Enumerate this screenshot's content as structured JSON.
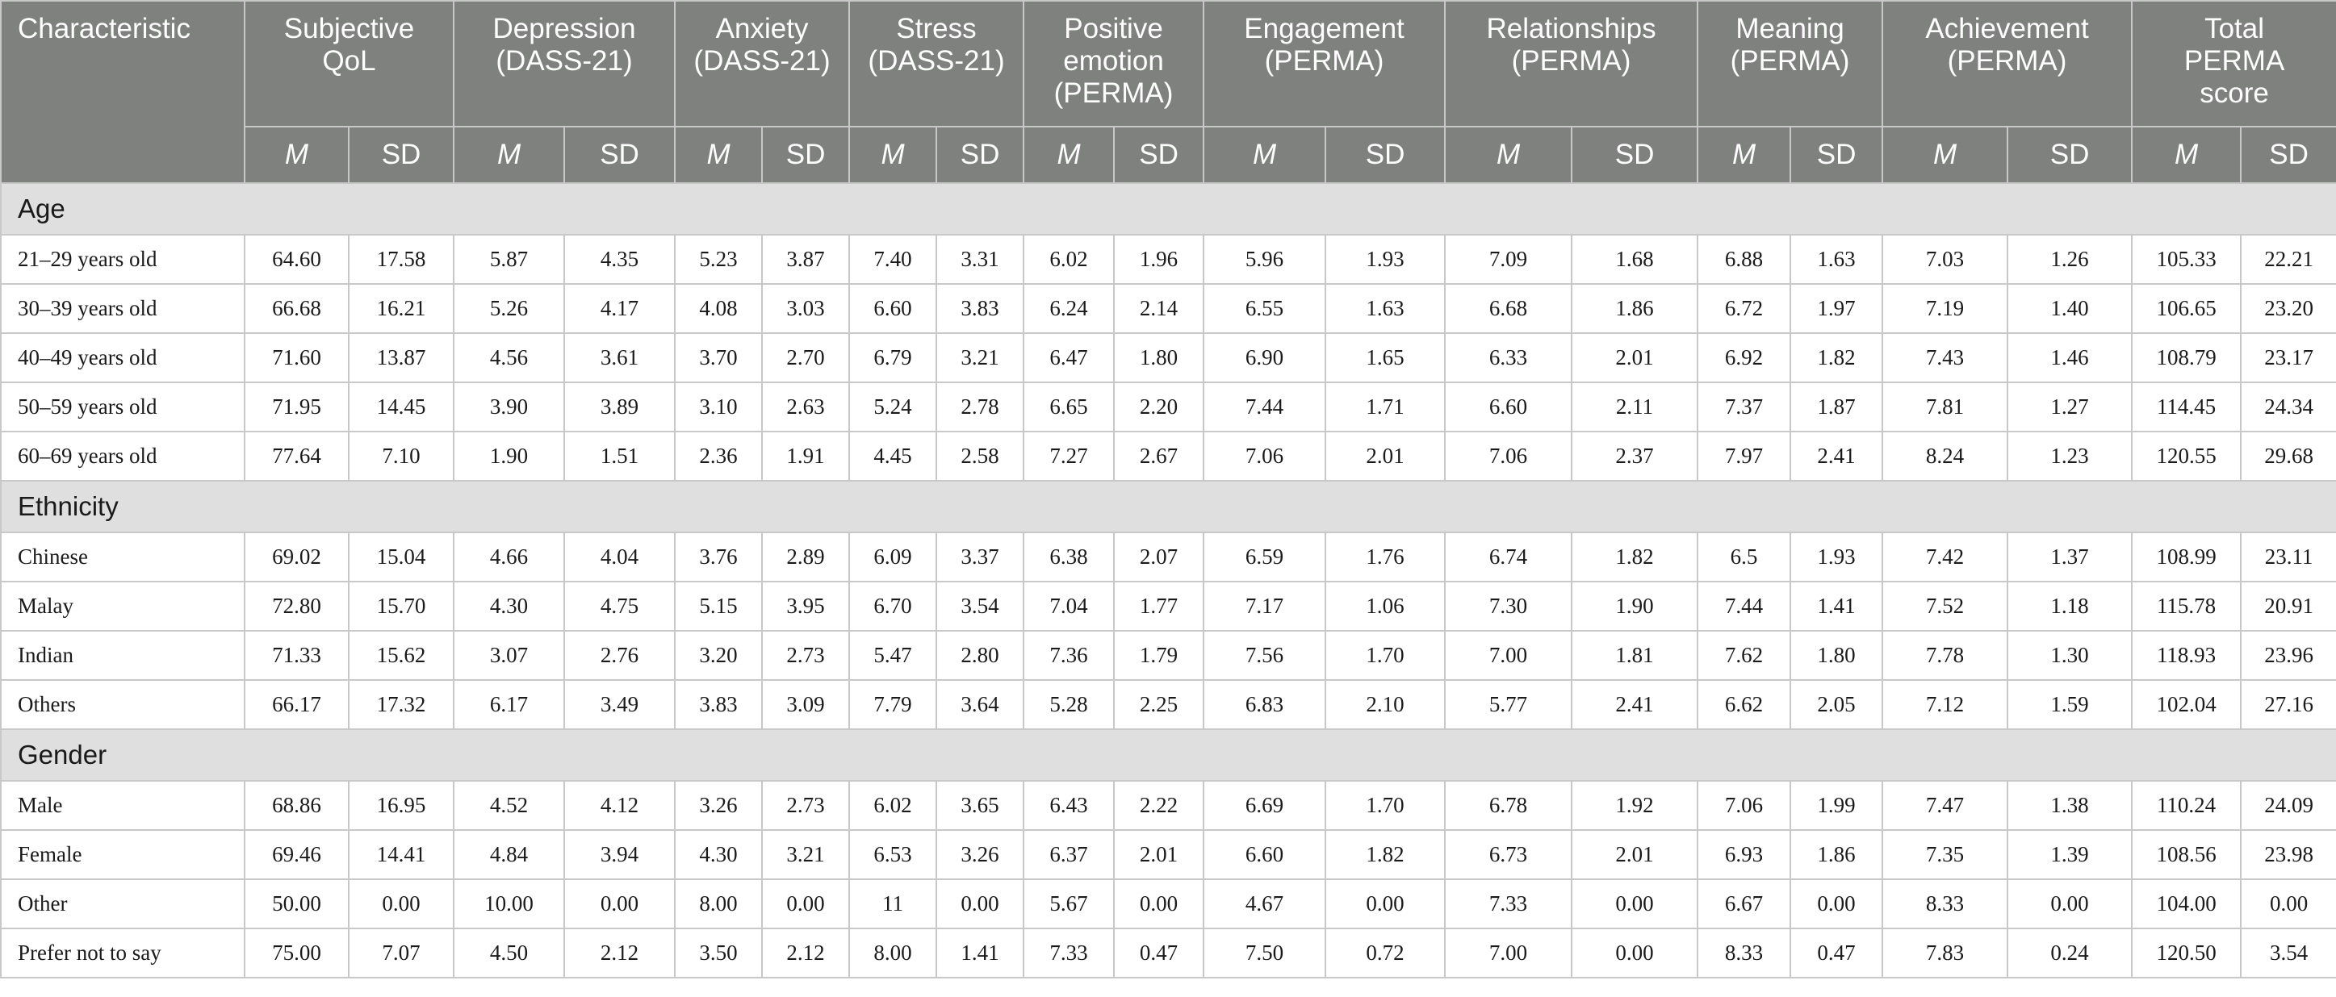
{
  "header": {
    "characteristic": "Characteristic",
    "groups": [
      {
        "line1": "Subjective",
        "line2": "QoL",
        "line3": ""
      },
      {
        "line1": "Depression",
        "line2": "(DASS-21)",
        "line3": ""
      },
      {
        "line1": "Anxiety",
        "line2": "(DASS-21)",
        "line3": ""
      },
      {
        "line1": "Stress",
        "line2": "(DASS-21)",
        "line3": ""
      },
      {
        "line1": "Positive",
        "line2": "emotion",
        "line3": "(PERMA)"
      },
      {
        "line1": "Engagement",
        "line2": "(PERMA)",
        "line3": ""
      },
      {
        "line1": "Relationships",
        "line2": "(PERMA)",
        "line3": ""
      },
      {
        "line1": "Meaning",
        "line2": "(PERMA)",
        "line3": ""
      },
      {
        "line1": "Achievement",
        "line2": "(PERMA)",
        "line3": ""
      },
      {
        "line1": "Total",
        "line2": "PERMA",
        "line3": "score"
      }
    ],
    "m_label": "M",
    "sd_label": "SD"
  },
  "sections": [
    {
      "title": "Age",
      "rows": [
        {
          "label": "21–29 years old",
          "values": [
            "64.60",
            "17.58",
            "5.87",
            "4.35",
            "5.23",
            "3.87",
            "7.40",
            "3.31",
            "6.02",
            "1.96",
            "5.96",
            "1.93",
            "7.09",
            "1.68",
            "6.88",
            "1.63",
            "7.03",
            "1.26",
            "105.33",
            "22.21"
          ]
        },
        {
          "label": "30–39 years old",
          "values": [
            "66.68",
            "16.21",
            "5.26",
            "4.17",
            "4.08",
            "3.03",
            "6.60",
            "3.83",
            "6.24",
            "2.14",
            "6.55",
            "1.63",
            "6.68",
            "1.86",
            "6.72",
            "1.97",
            "7.19",
            "1.40",
            "106.65",
            "23.20"
          ]
        },
        {
          "label": "40–49 years old",
          "values": [
            "71.60",
            "13.87",
            "4.56",
            "3.61",
            "3.70",
            "2.70",
            "6.79",
            "3.21",
            "6.47",
            "1.80",
            "6.90",
            "1.65",
            "6.33",
            "2.01",
            "6.92",
            "1.82",
            "7.43",
            "1.46",
            "108.79",
            "23.17"
          ]
        },
        {
          "label": "50–59 years old",
          "values": [
            "71.95",
            "14.45",
            "3.90",
            "3.89",
            "3.10",
            "2.63",
            "5.24",
            "2.78",
            "6.65",
            "2.20",
            "7.44",
            "1.71",
            "6.60",
            "2.11",
            "7.37",
            "1.87",
            "7.81",
            "1.27",
            "114.45",
            "24.34"
          ]
        },
        {
          "label": "60–69 years old",
          "values": [
            "77.64",
            "7.10",
            "1.90",
            "1.51",
            "2.36",
            "1.91",
            "4.45",
            "2.58",
            "7.27",
            "2.67",
            "7.06",
            "2.01",
            "7.06",
            "2.37",
            "7.97",
            "2.41",
            "8.24",
            "1.23",
            "120.55",
            "29.68"
          ]
        }
      ]
    },
    {
      "title": "Ethnicity",
      "rows": [
        {
          "label": "Chinese",
          "values": [
            "69.02",
            "15.04",
            "4.66",
            "4.04",
            "3.76",
            "2.89",
            "6.09",
            "3.37",
            "6.38",
            "2.07",
            "6.59",
            "1.76",
            "6.74",
            "1.82",
            "6.5",
            "1.93",
            "7.42",
            "1.37",
            "108.99",
            "23.11"
          ]
        },
        {
          "label": "Malay",
          "values": [
            "72.80",
            "15.70",
            "4.30",
            "4.75",
            "5.15",
            "3.95",
            "6.70",
            "3.54",
            "7.04",
            "1.77",
            "7.17",
            "1.06",
            "7.30",
            "1.90",
            "7.44",
            "1.41",
            "7.52",
            "1.18",
            "115.78",
            "20.91"
          ]
        },
        {
          "label": "Indian",
          "values": [
            "71.33",
            "15.62",
            "3.07",
            "2.76",
            "3.20",
            "2.73",
            "5.47",
            "2.80",
            "7.36",
            "1.79",
            "7.56",
            "1.70",
            "7.00",
            "1.81",
            "7.62",
            "1.80",
            "7.78",
            "1.30",
            "118.93",
            "23.96"
          ]
        },
        {
          "label": "Others",
          "values": [
            "66.17",
            "17.32",
            "6.17",
            "3.49",
            "3.83",
            "3.09",
            "7.79",
            "3.64",
            "5.28",
            "2.25",
            "6.83",
            "2.10",
            "5.77",
            "2.41",
            "6.62",
            "2.05",
            "7.12",
            "1.59",
            "102.04",
            "27.16"
          ]
        }
      ]
    },
    {
      "title": "Gender",
      "rows": [
        {
          "label": "Male",
          "values": [
            "68.86",
            "16.95",
            "4.52",
            "4.12",
            "3.26",
            "2.73",
            "6.02",
            "3.65",
            "6.43",
            "2.22",
            "6.69",
            "1.70",
            "6.78",
            "1.92",
            "7.06",
            "1.99",
            "7.47",
            "1.38",
            "110.24",
            "24.09"
          ]
        },
        {
          "label": "Female",
          "values": [
            "69.46",
            "14.41",
            "4.84",
            "3.94",
            "4.30",
            "3.21",
            "6.53",
            "3.26",
            "6.37",
            "2.01",
            "6.60",
            "1.82",
            "6.73",
            "2.01",
            "6.93",
            "1.86",
            "7.35",
            "1.39",
            "108.56",
            "23.98"
          ]
        },
        {
          "label": "Other",
          "values": [
            "50.00",
            "0.00",
            "10.00",
            "0.00",
            "8.00",
            "0.00",
            "11",
            "0.00",
            "5.67",
            "0.00",
            "4.67",
            "0.00",
            "7.33",
            "0.00",
            "6.67",
            "0.00",
            "8.33",
            "0.00",
            "104.00",
            "0.00"
          ]
        },
        {
          "label": "Prefer not to say",
          "values": [
            "75.00",
            "7.07",
            "4.50",
            "2.12",
            "3.50",
            "2.12",
            "8.00",
            "1.41",
            "7.33",
            "0.47",
            "7.50",
            "0.72",
            "7.00",
            "0.00",
            "8.33",
            "0.47",
            "7.83",
            "0.24",
            "120.50",
            "3.54"
          ]
        }
      ]
    }
  ]
}
